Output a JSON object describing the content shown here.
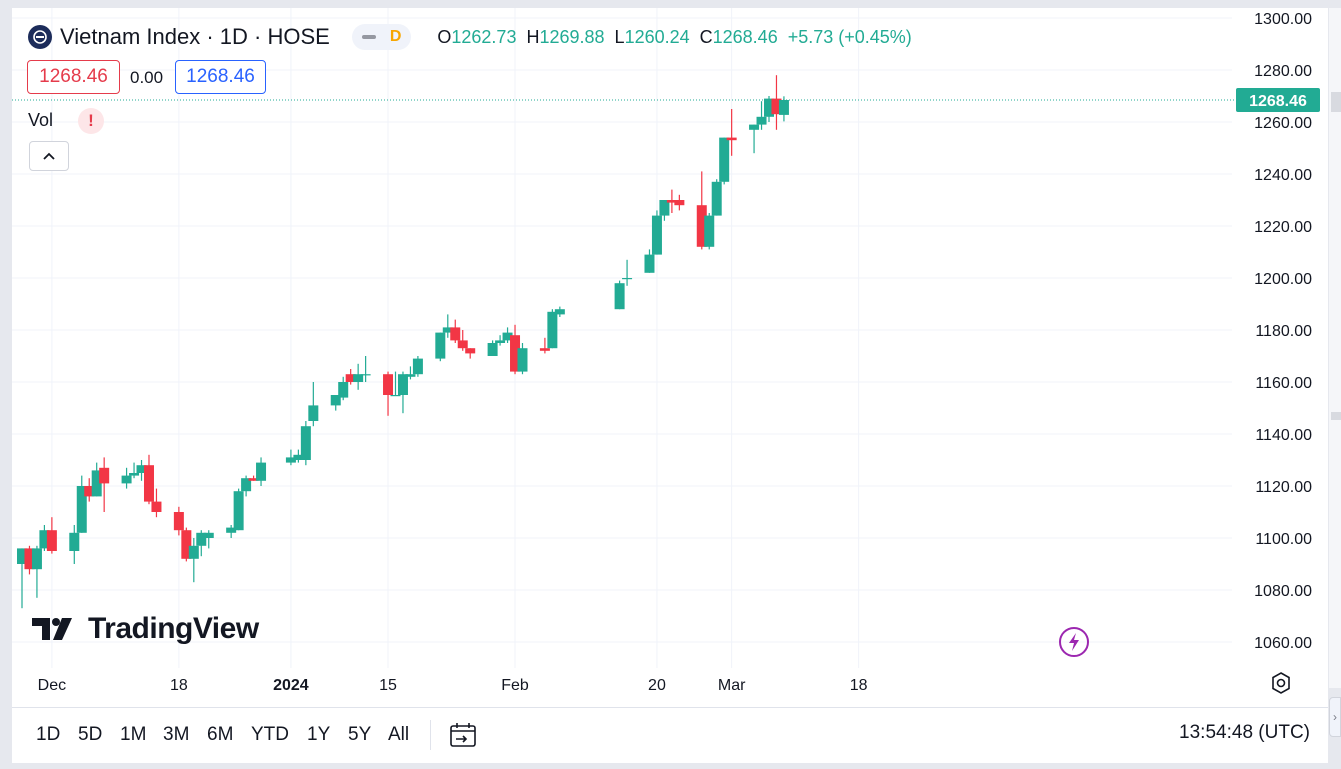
{
  "header": {
    "title": "Vietnam Index · 1D · HOSE",
    "badge_letter": "D",
    "ohlc": {
      "o_label": "O",
      "o_value": "1262.73",
      "h_label": "H",
      "h_value": "1269.88",
      "l_label": "L",
      "l_value": "1260.24",
      "c_label": "C",
      "c_value": "1268.46",
      "change": "+5.73 (+0.45%)"
    },
    "sell_value": "1268.46",
    "spread": "0.00",
    "buy_value": "1268.46",
    "indicator_label": "Vol",
    "warning_symbol": "!"
  },
  "watermark": "TradingView",
  "toolbar": {
    "ranges": [
      "1D",
      "5D",
      "1M",
      "3M",
      "6M",
      "YTD",
      "1Y",
      "5Y",
      "All"
    ],
    "clock": "13:54:48 (UTC)"
  },
  "colors": {
    "up": "#22ab94",
    "down": "#f23645",
    "grid": "#f0f3fa",
    "price_tag": "#22ab94",
    "text": "#131722"
  },
  "chart_data": {
    "type": "candlestick",
    "title": "Vietnam Index · 1D · HOSE",
    "y_ticks": [
      "1300.00",
      "1280.00",
      "1260.00",
      "1240.00",
      "1220.00",
      "1200.00",
      "1180.00",
      "1160.00",
      "1140.00",
      "1120.00",
      "1100.00",
      "1080.00",
      "1060.00"
    ],
    "ylim": [
      1055,
      1302
    ],
    "x_ticks": [
      {
        "label": "Dec",
        "date": "2023-12-01",
        "bold": false
      },
      {
        "label": "18",
        "date": "2023-12-18",
        "bold": false
      },
      {
        "label": "2024",
        "date": "2024-01-02",
        "bold": true
      },
      {
        "label": "15",
        "date": "2024-01-15",
        "bold": false
      },
      {
        "label": "Feb",
        "date": "2024-02-01",
        "bold": false
      },
      {
        "label": "20",
        "date": "2024-02-20",
        "bold": false
      },
      {
        "label": "Mar",
        "date": "2024-03-01",
        "bold": false
      },
      {
        "label": "18",
        "date": "2024-03-18",
        "bold": false
      }
    ],
    "last_price": "1268.46",
    "grid": true,
    "candles": [
      {
        "d": "2023-11-27",
        "o": 1090,
        "h": 1096,
        "l": 1073,
        "c": 1096
      },
      {
        "d": "2023-11-28",
        "o": 1096,
        "h": 1097,
        "l": 1086,
        "c": 1088
      },
      {
        "d": "2023-11-29",
        "o": 1088,
        "h": 1097,
        "l": 1077,
        "c": 1096
      },
      {
        "d": "2023-11-30",
        "o": 1096,
        "h": 1105,
        "l": 1095,
        "c": 1103
      },
      {
        "d": "2023-12-01",
        "o": 1103,
        "h": 1108,
        "l": 1094,
        "c": 1095
      },
      {
        "d": "2023-12-04",
        "o": 1095,
        "h": 1105,
        "l": 1090,
        "c": 1102
      },
      {
        "d": "2023-12-05",
        "o": 1102,
        "h": 1124,
        "l": 1102,
        "c": 1120
      },
      {
        "d": "2023-12-06",
        "o": 1120,
        "h": 1123,
        "l": 1114,
        "c": 1116
      },
      {
        "d": "2023-12-07",
        "o": 1116,
        "h": 1129,
        "l": 1116,
        "c": 1126
      },
      {
        "d": "2023-12-08",
        "o": 1127,
        "h": 1131,
        "l": 1110,
        "c": 1121
      },
      {
        "d": "2023-12-11",
        "o": 1121,
        "h": 1127,
        "l": 1119,
        "c": 1124
      },
      {
        "d": "2023-12-12",
        "o": 1124,
        "h": 1129,
        "l": 1123,
        "c": 1125
      },
      {
        "d": "2023-12-13",
        "o": 1125,
        "h": 1130,
        "l": 1122,
        "c": 1128
      },
      {
        "d": "2023-12-14",
        "o": 1128,
        "h": 1132,
        "l": 1113,
        "c": 1114
      },
      {
        "d": "2023-12-15",
        "o": 1114,
        "h": 1119,
        "l": 1108,
        "c": 1110
      },
      {
        "d": "2023-12-18",
        "o": 1110,
        "h": 1112,
        "l": 1101,
        "c": 1103
      },
      {
        "d": "2023-12-19",
        "o": 1103,
        "h": 1104,
        "l": 1091,
        "c": 1092
      },
      {
        "d": "2023-12-20",
        "o": 1092,
        "h": 1100,
        "l": 1083,
        "c": 1097
      },
      {
        "d": "2023-12-21",
        "o": 1097,
        "h": 1103,
        "l": 1093,
        "c": 1102
      },
      {
        "d": "2023-12-22",
        "o": 1100,
        "h": 1103,
        "l": 1096,
        "c": 1102
      },
      {
        "d": "2023-12-25",
        "o": 1102,
        "h": 1105,
        "l": 1100,
        "c": 1104
      },
      {
        "d": "2023-12-26",
        "o": 1103,
        "h": 1119,
        "l": 1103,
        "c": 1118
      },
      {
        "d": "2023-12-27",
        "o": 1118,
        "h": 1124,
        "l": 1116,
        "c": 1123
      },
      {
        "d": "2023-12-28",
        "o": 1123,
        "h": 1124,
        "l": 1122,
        "c": 1122
      },
      {
        "d": "2023-12-29",
        "o": 1122,
        "h": 1131,
        "l": 1120,
        "c": 1129
      },
      {
        "d": "2024-01-02",
        "o": 1129,
        "h": 1134,
        "l": 1128,
        "c": 1131
      },
      {
        "d": "2024-01-03",
        "o": 1130,
        "h": 1134,
        "l": 1129,
        "c": 1132
      },
      {
        "d": "2024-01-04",
        "o": 1130,
        "h": 1145,
        "l": 1128,
        "c": 1143
      },
      {
        "d": "2024-01-05",
        "o": 1145,
        "h": 1160,
        "l": 1143,
        "c": 1151
      },
      {
        "d": "2024-01-08",
        "o": 1151,
        "h": 1155,
        "l": 1149,
        "c": 1155
      },
      {
        "d": "2024-01-09",
        "o": 1154,
        "h": 1162,
        "l": 1153,
        "c": 1160
      },
      {
        "d": "2024-01-10",
        "o": 1163,
        "h": 1165,
        "l": 1159,
        "c": 1160
      },
      {
        "d": "2024-01-11",
        "o": 1160,
        "h": 1167,
        "l": 1157,
        "c": 1163
      },
      {
        "d": "2024-01-12",
        "o": 1163,
        "h": 1170,
        "l": 1160,
        "c": 1163
      },
      {
        "d": "2024-01-15",
        "o": 1163,
        "h": 1164,
        "l": 1147,
        "c": 1155
      },
      {
        "d": "2024-01-16",
        "o": 1155,
        "h": 1164,
        "l": 1155,
        "c": 1155
      },
      {
        "d": "2024-01-17",
        "o": 1155,
        "h": 1164,
        "l": 1148,
        "c": 1163
      },
      {
        "d": "2024-01-18",
        "o": 1162,
        "h": 1166,
        "l": 1161,
        "c": 1163
      },
      {
        "d": "2024-01-19",
        "o": 1163,
        "h": 1170,
        "l": 1162,
        "c": 1169
      },
      {
        "d": "2024-01-22",
        "o": 1169,
        "h": 1179,
        "l": 1168,
        "c": 1179
      },
      {
        "d": "2024-01-23",
        "o": 1179,
        "h": 1186,
        "l": 1177,
        "c": 1181
      },
      {
        "d": "2024-01-24",
        "o": 1181,
        "h": 1184,
        "l": 1175,
        "c": 1176
      },
      {
        "d": "2024-01-25",
        "o": 1176,
        "h": 1180,
        "l": 1172,
        "c": 1173
      },
      {
        "d": "2024-01-26",
        "o": 1173,
        "h": 1173,
        "l": 1169,
        "c": 1171
      },
      {
        "d": "2024-01-29",
        "o": 1170,
        "h": 1176,
        "l": 1170,
        "c": 1175
      },
      {
        "d": "2024-01-30",
        "o": 1175,
        "h": 1178,
        "l": 1174,
        "c": 1176
      },
      {
        "d": "2024-01-31",
        "o": 1176,
        "h": 1181,
        "l": 1175,
        "c": 1179
      },
      {
        "d": "2024-02-01",
        "o": 1178,
        "h": 1182,
        "l": 1163,
        "c": 1164
      },
      {
        "d": "2024-02-02",
        "o": 1164,
        "h": 1175,
        "l": 1163,
        "c": 1173
      },
      {
        "d": "2024-02-05",
        "o": 1173,
        "h": 1177,
        "l": 1171,
        "c": 1172
      },
      {
        "d": "2024-02-06",
        "o": 1173,
        "h": 1188,
        "l": 1173,
        "c": 1187
      },
      {
        "d": "2024-02-07",
        "o": 1186,
        "h": 1189,
        "l": 1185,
        "c": 1188
      },
      {
        "d": "2024-02-15",
        "o": 1188,
        "h": 1199,
        "l": 1188,
        "c": 1198
      },
      {
        "d": "2024-02-16",
        "o": 1200,
        "h": 1207,
        "l": 1197,
        "c": 1200
      },
      {
        "d": "2024-02-19",
        "o": 1202,
        "h": 1211,
        "l": 1202,
        "c": 1209
      },
      {
        "d": "2024-02-20",
        "o": 1209,
        "h": 1226,
        "l": 1209,
        "c": 1224
      },
      {
        "d": "2024-02-21",
        "o": 1224,
        "h": 1230,
        "l": 1222,
        "c": 1230
      },
      {
        "d": "2024-02-22",
        "o": 1230,
        "h": 1234,
        "l": 1225,
        "c": 1229
      },
      {
        "d": "2024-02-23",
        "o": 1230,
        "h": 1232,
        "l": 1226,
        "c": 1228
      },
      {
        "d": "2024-02-26",
        "o": 1228,
        "h": 1241,
        "l": 1211,
        "c": 1212
      },
      {
        "d": "2024-02-27",
        "o": 1212,
        "h": 1225,
        "l": 1211,
        "c": 1224
      },
      {
        "d": "2024-02-28",
        "o": 1224,
        "h": 1238,
        "l": 1224,
        "c": 1237
      },
      {
        "d": "2024-02-29",
        "o": 1237,
        "h": 1254,
        "l": 1236,
        "c": 1254
      },
      {
        "d": "2024-03-01",
        "o": 1254,
        "h": 1265,
        "l": 1247,
        "c": 1253
      },
      {
        "d": "2024-03-04",
        "o": 1257,
        "h": 1259,
        "l": 1248,
        "c": 1259
      },
      {
        "d": "2024-03-05",
        "o": 1259,
        "h": 1268,
        "l": 1257,
        "c": 1262
      },
      {
        "d": "2024-03-06",
        "o": 1262,
        "h": 1270,
        "l": 1260,
        "c": 1269
      },
      {
        "d": "2024-03-07",
        "o": 1269,
        "h": 1278,
        "l": 1257,
        "c": 1263
      },
      {
        "d": "2024-03-08",
        "o": 1262.73,
        "h": 1269.88,
        "l": 1260.24,
        "c": 1268.46
      }
    ]
  }
}
